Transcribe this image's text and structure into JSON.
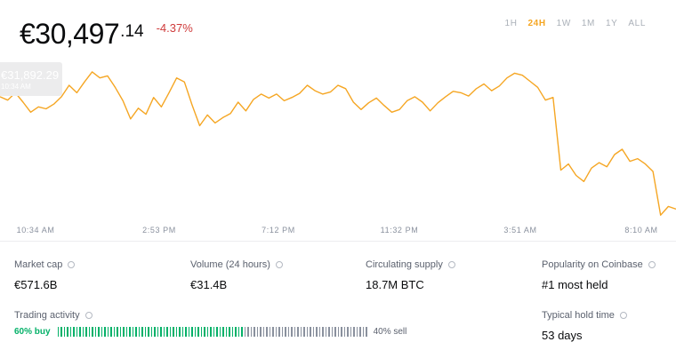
{
  "price": {
    "currency_symbol": "€",
    "integer": "30,497",
    "decimal": ".14",
    "change": "-4.37%"
  },
  "ranges": [
    {
      "label": "1H",
      "active": false
    },
    {
      "label": "24H",
      "active": true
    },
    {
      "label": "1W",
      "active": false
    },
    {
      "label": "1M",
      "active": false
    },
    {
      "label": "1Y",
      "active": false
    },
    {
      "label": "ALL",
      "active": false
    }
  ],
  "tooltip": {
    "value": "€31,892.29",
    "time": "10:34 AM"
  },
  "colors": {
    "line": "#f5a623",
    "buy": "#05b169",
    "sell": "#8a919e",
    "negative": "#cf3b3b"
  },
  "time_axis": [
    "10:34 AM",
    "2:53 PM",
    "7:12 PM",
    "11:32 PM",
    "3:51 AM",
    "8:10 AM"
  ],
  "chart_data": {
    "type": "line",
    "series": [
      {
        "values": [
          31560,
          31510,
          31620,
          31480,
          31330,
          31410,
          31380,
          31450,
          31560,
          31730,
          31620,
          31780,
          31930,
          31840,
          31870,
          31700,
          31500,
          31230,
          31390,
          31300,
          31550,
          31410,
          31620,
          31840,
          31780,
          31440,
          31130,
          31290,
          31170,
          31250,
          31310,
          31480,
          31350,
          31520,
          31600,
          31540,
          31600,
          31500,
          31550,
          31610,
          31730,
          31650,
          31600,
          31630,
          31730,
          31680,
          31480,
          31370,
          31470,
          31540,
          31430,
          31330,
          31370,
          31500,
          31560,
          31480,
          31350,
          31470,
          31560,
          31640,
          31620,
          31570,
          31680,
          31750,
          31650,
          31720,
          31840,
          31910,
          31880,
          31790,
          31700,
          31510,
          31550,
          30470,
          30560,
          30390,
          30300,
          30500,
          30580,
          30520,
          30700,
          30780,
          30600,
          30640,
          30560,
          30450,
          29800,
          29930,
          29890
        ]
      }
    ],
    "ylim": [
      29750,
      32100
    ]
  },
  "stats": {
    "market_cap": {
      "label": "Market cap",
      "value": "€571.6B"
    },
    "volume": {
      "label": "Volume (24 hours)",
      "value": "€31.4B"
    },
    "supply": {
      "label": "Circulating supply",
      "value": "18.7M BTC"
    },
    "popularity": {
      "label": "Popularity on Coinbase",
      "value": "#1 most held"
    },
    "trading": {
      "label": "Trading activity",
      "buy_label": "60% buy",
      "sell_label": "40% sell",
      "buy_fraction": 0.6
    },
    "hold_time": {
      "label": "Typical hold time",
      "value": "53 days"
    }
  }
}
